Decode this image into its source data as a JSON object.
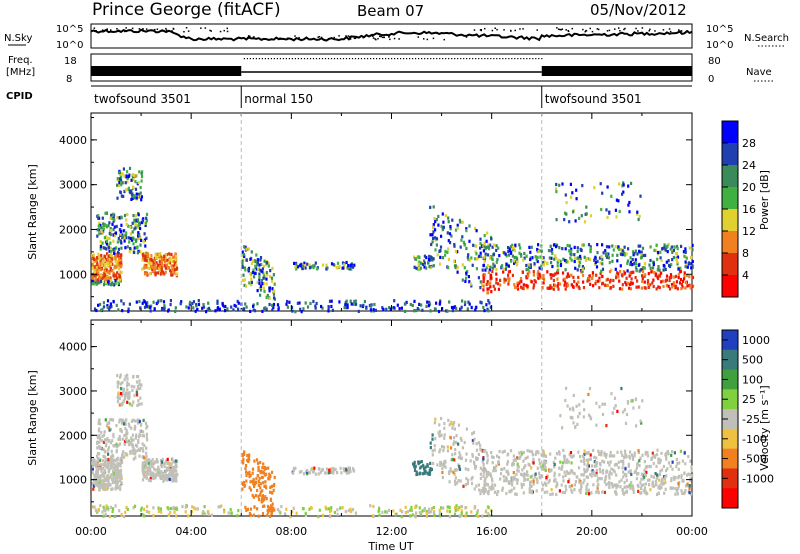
{
  "header": {
    "radar": "Prince George (fitACF)",
    "beam": "Beam 07",
    "date": "05/Nov/2012"
  },
  "strips": {
    "nsky_label": "N.Sky",
    "nsky_ticks": [
      "10^5",
      "10^0"
    ],
    "nsearch_label": "N.Search",
    "nsearch_ticks": [
      "10^5",
      "10^0"
    ],
    "freq_label": "Freq.",
    "freq_unit": "[MHz]",
    "freq_ticks": [
      "18",
      "8"
    ],
    "nave_label": "Nave",
    "nave_ticks": [
      "80",
      "0"
    ],
    "cpid_label": "CPID",
    "cpid_segments": [
      {
        "name": "twofsound 3501",
        "start_h": 0,
        "end_h": 6
      },
      {
        "name": "normal 150",
        "start_h": 6,
        "end_h": 18
      },
      {
        "name": "twofsound 3501",
        "start_h": 18,
        "end_h": 24
      }
    ]
  },
  "chart_data": [
    {
      "type": "heatmap",
      "title": "",
      "panel": "power",
      "ylabel": "Slant Range [km]",
      "yticks": [
        "1000",
        "2000",
        "3000",
        "4000"
      ],
      "ylim": [
        180,
        4600
      ],
      "xlim_hours": [
        0,
        24
      ],
      "colorbar_label": "Power [dB]",
      "colorbar_ticks": [
        "4",
        "8",
        "12",
        "16",
        "20",
        "24",
        "28"
      ],
      "colorbar_colors": [
        "#0000ff",
        "#2040b0",
        "#3a8a5a",
        "#40b040",
        "#e0d030",
        "#f08020",
        "#e03010",
        "#ff0000"
      ]
    },
    {
      "type": "heatmap",
      "title": "",
      "panel": "velocity",
      "ylabel": "Slant Range [km]",
      "yticks": [
        "1000",
        "2000",
        "3000",
        "4000"
      ],
      "ylim": [
        180,
        4600
      ],
      "xlim_hours": [
        0,
        24
      ],
      "colorbar_label": "Velocity [m s⁻¹]",
      "colorbar_ticks": [
        "1000",
        "500",
        "100",
        "25",
        "-25",
        "-100",
        "-500",
        "-1000"
      ],
      "colorbar_colors": [
        "#2040c0",
        "#3a7a7a",
        "#40a040",
        "#80d040",
        "#c0c0b8",
        "#f0c040",
        "#f08020",
        "#e03010",
        "#ff0000"
      ]
    }
  ],
  "xaxis": {
    "label": "Time UT",
    "ticks": [
      "00:00",
      "04:00",
      "08:00",
      "12:00",
      "16:00",
      "20:00",
      "00:00"
    ]
  }
}
